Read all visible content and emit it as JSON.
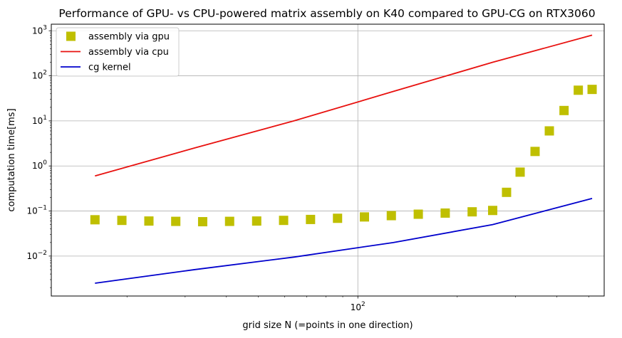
{
  "chart_data": {
    "type": "line",
    "title": "Performance of GPU- vs CPU-powered matrix assembly on K40 compared to GPU-CG on RTX3060",
    "xlabel": "grid size N (=points in one direction)",
    "ylabel": "computation time[ms]",
    "xscale": "log",
    "yscale": "log",
    "xlim": [
      11.8,
      557
    ],
    "ylim": [
      0.0013,
      1400
    ],
    "grid": true,
    "legend_position": "top-left",
    "x_tick_labels": [
      {
        "value": 100,
        "base": "10",
        "exp": "2"
      }
    ],
    "y_tick_labels": [
      {
        "value": 0.01,
        "base": "10",
        "exp": "−2"
      },
      {
        "value": 0.1,
        "base": "10",
        "exp": "−1"
      },
      {
        "value": 1,
        "base": "10",
        "exp": "0"
      },
      {
        "value": 10,
        "base": "10",
        "exp": "1"
      },
      {
        "value": 100,
        "base": "10",
        "exp": "2"
      },
      {
        "value": 1000,
        "base": "10",
        "exp": "3"
      }
    ],
    "series": [
      {
        "name": "assembly via gpu",
        "style": "square-markers",
        "color": "#bfbf00",
        "x": [
          16,
          19.3,
          23.3,
          28.1,
          33.9,
          40.9,
          49.4,
          59.6,
          71.9,
          86.8,
          104.7,
          126.3,
          152.4,
          183.9,
          221.9,
          256,
          282,
          310,
          344,
          380,
          421,
          465,
          512
        ],
        "y": [
          0.064,
          0.062,
          0.06,
          0.059,
          0.058,
          0.059,
          0.06,
          0.062,
          0.065,
          0.069,
          0.074,
          0.079,
          0.085,
          0.09,
          0.096,
          0.103,
          0.26,
          0.73,
          2.1,
          6.0,
          17,
          48,
          50
        ]
      },
      {
        "name": "assembly via cpu",
        "style": "line",
        "color": "#e8110f",
        "x": [
          16,
          32,
          64,
          128,
          256,
          512
        ],
        "y": [
          0.6,
          2.5,
          10,
          45,
          200,
          800
        ]
      },
      {
        "name": "cg kernel",
        "style": "line",
        "color": "#0000cc",
        "x": [
          16,
          32,
          64,
          128,
          256,
          512
        ],
        "y": [
          0.0025,
          0.005,
          0.0095,
          0.02,
          0.05,
          0.19
        ]
      }
    ]
  },
  "colors": {
    "grid": "#b0b0b0",
    "frame": "#000000",
    "legend_border": "#cccccc"
  }
}
